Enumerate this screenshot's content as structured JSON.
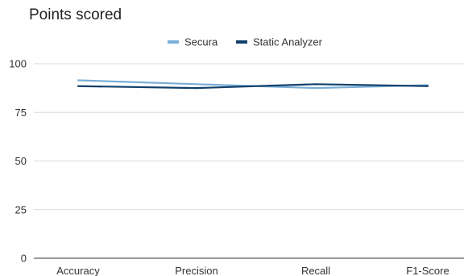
{
  "chart_data": {
    "type": "line",
    "title": "Points scored",
    "xlabel": "",
    "ylabel": "",
    "categories": [
      "Accuracy",
      "Precision",
      "Recall",
      "F1-Score"
    ],
    "ylim": [
      0,
      100
    ],
    "yticks": [
      0,
      25,
      50,
      75,
      100
    ],
    "grid": true,
    "legend_position": "top-center",
    "series": [
      {
        "name": "Secura",
        "color": "#7aaed6",
        "values": [
          91.5,
          89.5,
          87.5,
          89
        ]
      },
      {
        "name": "Static Analyzer",
        "color": "#12406b",
        "values": [
          88.5,
          87.5,
          89.5,
          88.5
        ]
      }
    ]
  }
}
